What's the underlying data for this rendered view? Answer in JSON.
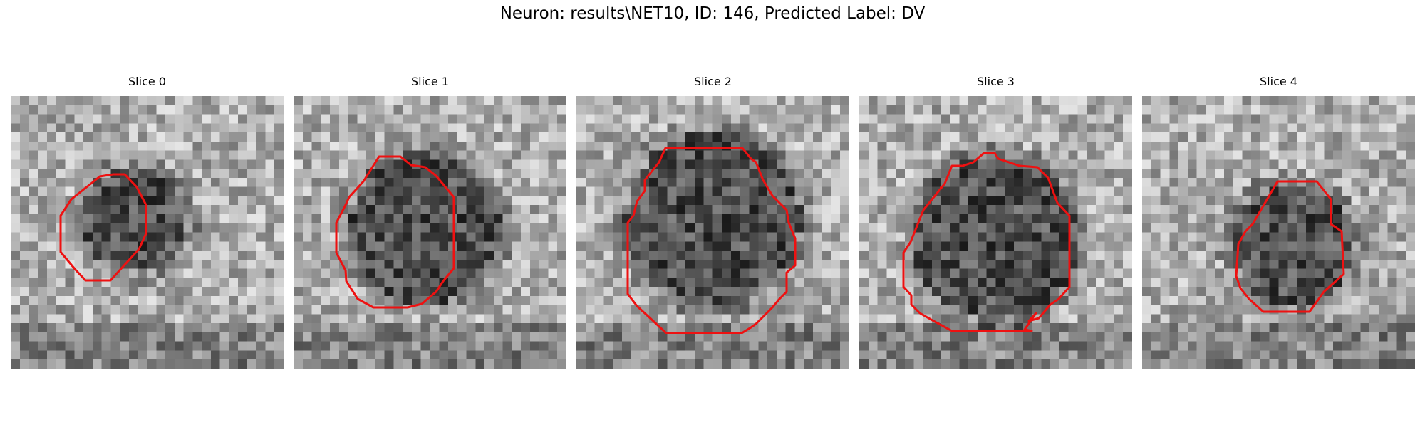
{
  "figure": {
    "title": "Neuron: results\\NET10, ID: 146, Predicted Label: DV",
    "contour_color": "#ee1111"
  },
  "panels": [
    {
      "title": "Slice 0"
    },
    {
      "title": "Slice 1"
    },
    {
      "title": "Slice 2"
    },
    {
      "title": "Slice 3"
    },
    {
      "title": "Slice 4"
    }
  ]
}
